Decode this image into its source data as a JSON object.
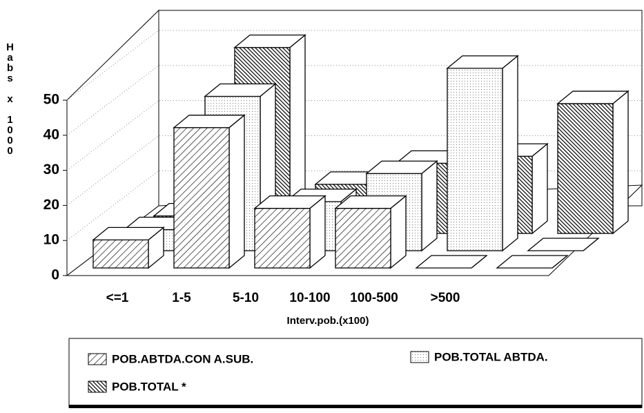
{
  "chart_data": {
    "type": "bar3d",
    "y_axis_label": "Habs x 1000",
    "x_axis_label": "Interv.pob.(x100)",
    "categories": [
      "<=1",
      "1-5",
      "5-10",
      "10-100",
      "100-500",
      ">500"
    ],
    "series": [
      {
        "name": "POB.ABTDA.CON A.SUB.",
        "color": "#000000",
        "pattern": "hatch",
        "values": [
          8,
          40,
          17,
          17,
          0,
          0
        ]
      },
      {
        "name": "POB.TOTAL ABTDA.",
        "color": "#000000",
        "pattern": "dots",
        "values": [
          6,
          44,
          14,
          22,
          52,
          0
        ]
      },
      {
        "name": "POB.TOTAL *",
        "color": "#000000",
        "pattern": "dense-hatch",
        "values": [
          5,
          53,
          14,
          20,
          22,
          37
        ]
      }
    ],
    "ylim": [
      0,
      50
    ],
    "yticks": [
      0,
      10,
      20,
      30,
      40,
      50
    ],
    "grid": true
  }
}
